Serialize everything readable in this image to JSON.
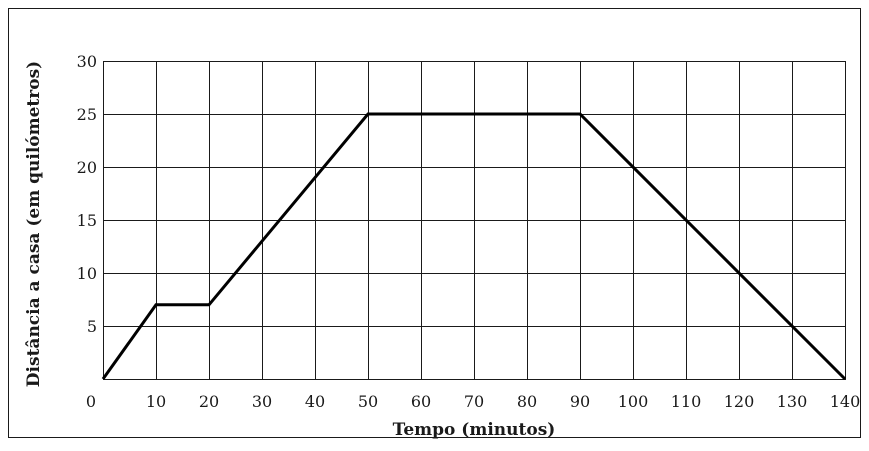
{
  "chart_data": {
    "type": "line",
    "title": "",
    "xlabel": "Tempo (minutos)",
    "ylabel": "Distância a casa (em quilómetros)",
    "xlim": [
      0,
      140
    ],
    "ylim": [
      0,
      30
    ],
    "x_ticks": [
      0,
      10,
      20,
      30,
      40,
      50,
      60,
      70,
      80,
      90,
      100,
      110,
      120,
      130,
      140
    ],
    "y_ticks": [
      5,
      10,
      15,
      20,
      25,
      30
    ],
    "grid": true,
    "legend": "none",
    "line_color": "#000000",
    "series": [
      {
        "x": [
          0,
          10,
          20,
          50,
          90,
          140
        ],
        "values": [
          0,
          7,
          7,
          25,
          25,
          0
        ]
      }
    ]
  }
}
